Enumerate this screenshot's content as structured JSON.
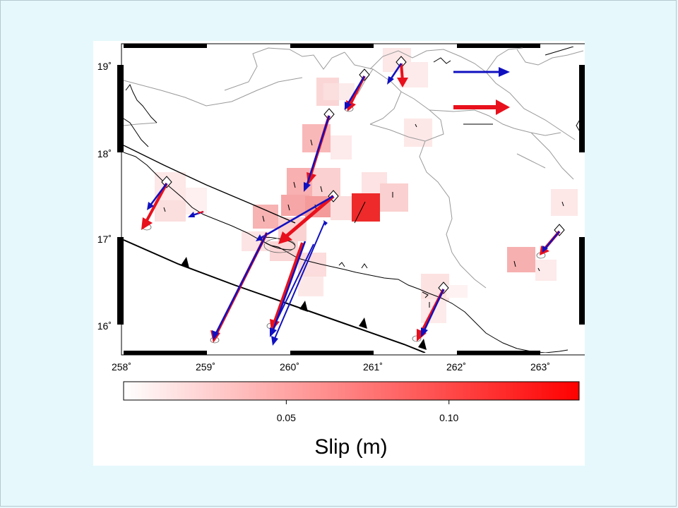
{
  "map": {
    "lat_ticks": [
      "19˚",
      "18˚",
      "17˚",
      "16˚"
    ],
    "lon_ticks": [
      "258˚",
      "259˚",
      "260˚",
      "261˚",
      "262˚",
      "263˚"
    ],
    "extent": {
      "lon": [
        258,
        263.4
      ],
      "lat": [
        15.7,
        19.2
      ]
    }
  },
  "colorbar": {
    "tick_labels": [
      "0.05",
      "0.10"
    ],
    "tick_values": [
      0.05,
      0.1
    ],
    "range": [
      0,
      0.14
    ],
    "title": "Slip (m)",
    "colors": {
      "low": "#ffffff",
      "high": "#ff0000"
    }
  },
  "legend": {
    "observed_color": "#1010c0",
    "model_color": "#e8101c"
  },
  "colors": {
    "background": "#e6f8fc",
    "observed": "#1010c0",
    "model": "#e8101c",
    "trench": "#000000",
    "border": "#9a9a9a"
  }
}
